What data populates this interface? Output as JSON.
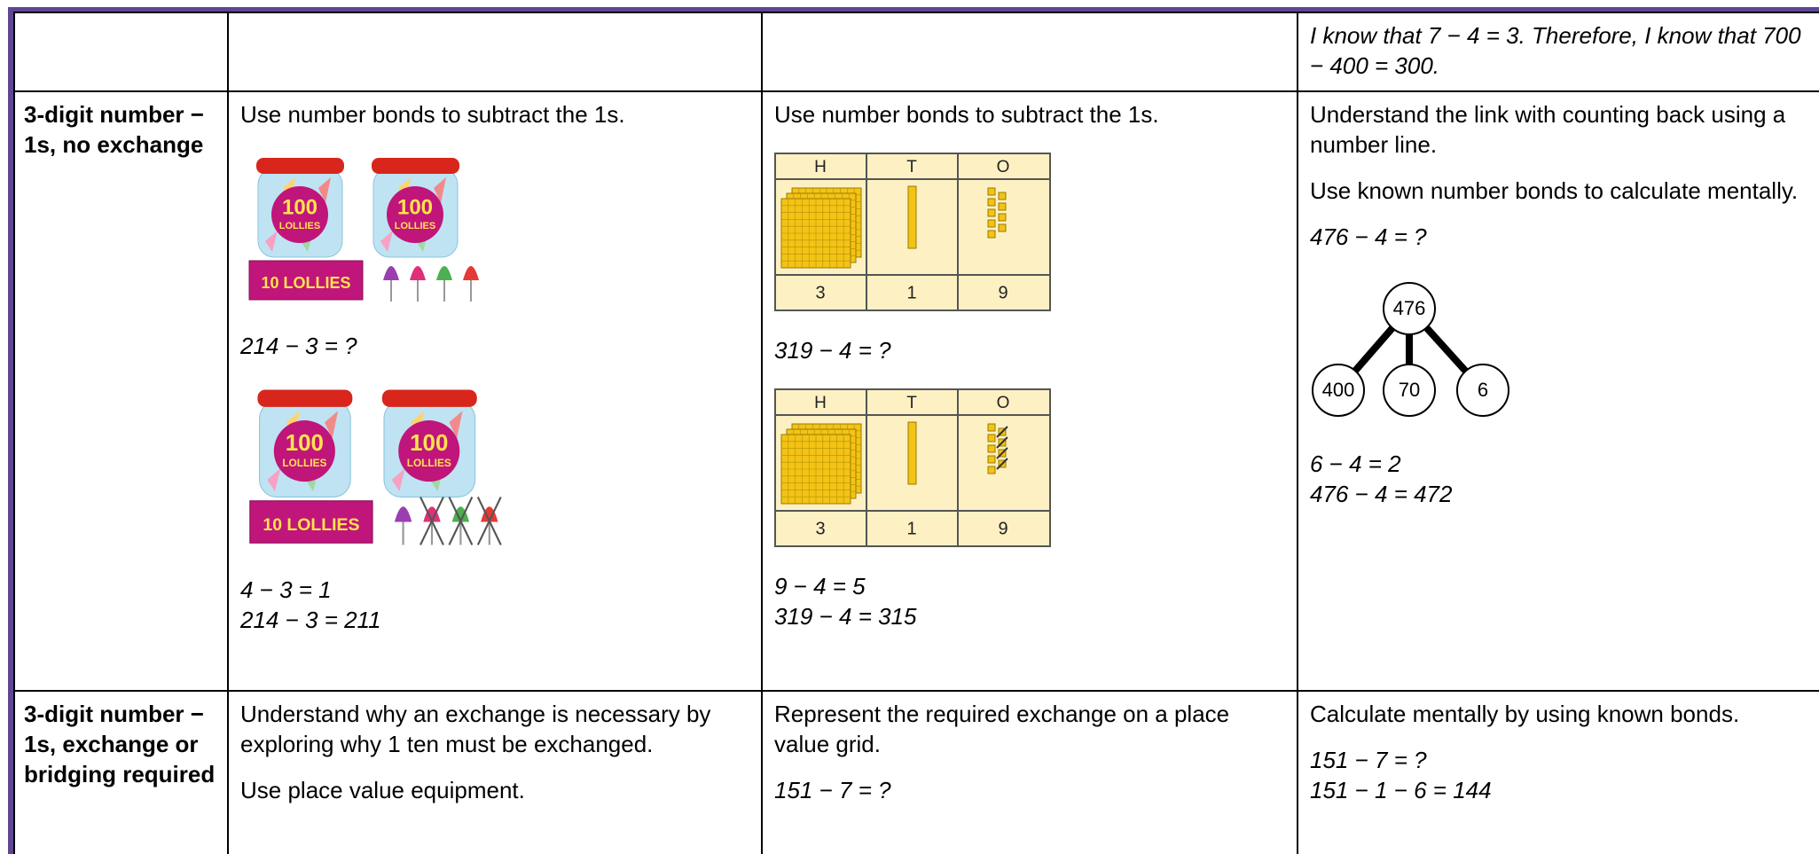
{
  "table": {
    "rows": [
      {
        "abstract": [
          {
            "m": "I know that 7 − 4 = 3. Therefore, I know that 700 − 400 = 300."
          }
        ]
      },
      {
        "heading": "3-digit number − 1s, no exchange",
        "concrete": [
          {
            "p": "Use number bonds to subtract the 1s."
          },
          {
            "jars_before": {
              "big": "100",
              "big_sub": "LOLLIES",
              "small": "10 LOLLIES"
            }
          },
          {
            "m": "214 − 3 = ?"
          },
          {
            "jars_after": {
              "big": "100",
              "big_sub": "LOLLIES",
              "small": "10 LOLLIES"
            }
          },
          {
            "m": "4 − 3 = 1"
          },
          {
            "m": "214 − 3 = 211"
          }
        ],
        "pictorial": [
          {
            "p": "Use number bonds to subtract the 1s."
          },
          {
            "pv_before": {
              "headers": [
                "H",
                "T",
                "O"
              ],
              "digits": [
                "3",
                "1",
                "9"
              ]
            }
          },
          {
            "m": "319 − 4 = ?"
          },
          {
            "pv_after": {
              "headers": [
                "H",
                "T",
                "O"
              ],
              "digits": [
                "3",
                "1",
                "9"
              ]
            }
          },
          {
            "m": "9 − 4 = 5"
          },
          {
            "m": "319 − 4 = 315"
          }
        ],
        "abstract": [
          {
            "p": "Understand the link with counting back using a number line."
          },
          {
            "p": "Use known number bonds to calculate mentally."
          },
          {
            "m": "476 − 4 = ?"
          },
          {
            "part_whole": {
              "whole": "476",
              "parts": [
                "400",
                "70",
                "6"
              ]
            }
          },
          {
            "m": "6 − 4 = 2"
          },
          {
            "m": "476 − 4 = 472"
          }
        ]
      },
      {
        "heading": "3-digit number − 1s, exchange or bridging required",
        "concrete": [
          {
            "p": "Understand why an exchange is necessary by exploring why 1 ten must be exchanged."
          },
          {
            "p": "Use place value equipment."
          }
        ],
        "pictorial": [
          {
            "p": "Represent the required exchange on a place value grid."
          },
          {
            "m": "151 − 7 = ?"
          }
        ],
        "abstract": [
          {
            "p": "Calculate mentally by using known bonds."
          },
          {
            "m": "151 − 7 = ?"
          },
          {
            "m": "151 − 1 − 6 = 144"
          }
        ]
      }
    ]
  }
}
